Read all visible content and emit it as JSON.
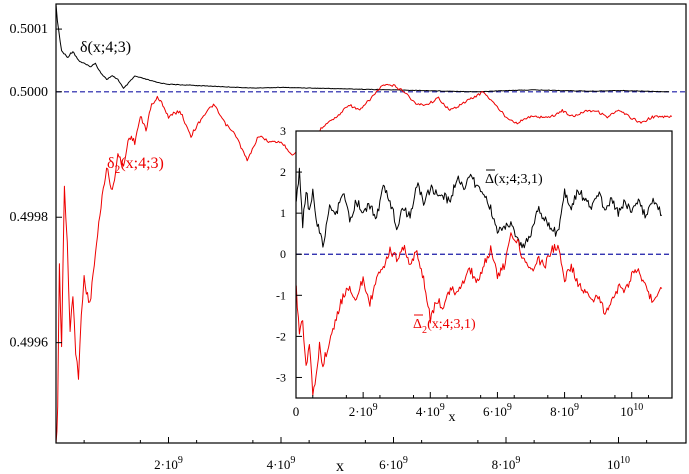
{
  "chart_data": [
    {
      "type": "line",
      "title": "",
      "xlabel": "x",
      "ylabel": "",
      "xlim": [
        0,
        11200000000
      ],
      "ylim": [
        0.49944,
        0.50014
      ],
      "x_ticks": [
        {
          "value": 2000000000,
          "mant": "2",
          "sep": "·",
          "base": "10",
          "exp": "9"
        },
        {
          "value": 4000000000,
          "mant": "4",
          "sep": "·",
          "base": "10",
          "exp": "9"
        },
        {
          "value": 6000000000,
          "mant": "6",
          "sep": "·",
          "base": "10",
          "exp": "9"
        },
        {
          "value": 8000000000,
          "mant": "8",
          "sep": "·",
          "base": "10",
          "exp": "9"
        },
        {
          "value": 10000000000,
          "mant": "",
          "sep": "",
          "base": "10",
          "exp": "10"
        }
      ],
      "y_ticks": [
        {
          "value": 0.4996,
          "label": "0.4996"
        },
        {
          "value": 0.4998,
          "label": "0.4998"
        },
        {
          "value": 0.5,
          "label": "0.5000"
        },
        {
          "value": 0.5001,
          "label": "0.5001"
        }
      ],
      "reference_line": {
        "y": 0.5,
        "color": "#1a1aa6",
        "style": "dashed"
      },
      "series": [
        {
          "label_main": "δ",
          "label_sub": "",
          "label_rest": "(x;4;3)",
          "color": "#000000",
          "x": [
            1000000,
            50000000,
            100000000,
            200000000,
            300000000,
            400000000,
            500000000,
            600000000,
            700000000,
            800000000,
            900000000,
            1000000000,
            1100000000,
            1200000000,
            1400000000,
            1600000000,
            1800000000,
            2000000000,
            2500000000,
            3000000000,
            3500000000,
            4000000000,
            4500000000,
            5000000000,
            5500000000,
            6000000000,
            6500000000,
            7000000000,
            7500000000,
            8000000000,
            8500000000,
            9000000000,
            9500000000,
            10000000000,
            10500000000,
            10900000000
          ],
          "y": [
            0.500135,
            0.500095,
            0.500065,
            0.500055,
            0.500065,
            0.50005,
            0.500045,
            0.50004,
            0.500045,
            0.50003,
            0.50002,
            0.500025,
            0.50002,
            0.500005,
            0.500025,
            0.50002,
            0.500015,
            0.500012,
            0.50001,
            0.500008,
            0.500006,
            0.500007,
            0.500006,
            0.500005,
            0.500004,
            0.500003,
            0.500002,
            0.500001,
            0.5,
            0.500002,
            0.500003,
            0.500002,
            0.500001,
            0.500002,
            0.500001,
            0.5
          ]
        },
        {
          "label_main": "δ",
          "label_sub": "2",
          "label_rest": "(x;4;3)",
          "color": "#ee0000",
          "x": [
            1000000,
            30000000,
            60000000,
            100000000,
            150000000,
            200000000,
            250000000,
            300000000,
            350000000,
            400000000,
            450000000,
            500000000,
            600000000,
            700000000,
            800000000,
            900000000,
            1000000000,
            1100000000,
            1200000000,
            1300000000,
            1400000000,
            1500000000,
            1600000000,
            1700000000,
            1800000000,
            1900000000,
            2000000000,
            2200000000,
            2400000000,
            2600000000,
            2800000000,
            3000000000,
            3200000000,
            3400000000,
            3600000000,
            3800000000,
            4000000000,
            4200000000,
            4400000000,
            4600000000,
            4800000000,
            5000000000,
            5200000000,
            5400000000,
            5600000000,
            5800000000,
            6000000000,
            6200000000,
            6400000000,
            6600000000,
            6800000000,
            7000000000,
            7200000000,
            7400000000,
            7600000000,
            7800000000,
            8000000000,
            8200000000,
            8400000000,
            8600000000,
            8800000000,
            9000000000,
            9200000000,
            9400000000,
            9600000000,
            9800000000,
            10000000000,
            10200000000,
            10400000000,
            10600000000,
            10800000000,
            10950000000
          ],
          "y": [
            0.49943,
            0.4995,
            0.49972,
            0.4996,
            0.49985,
            0.49975,
            0.49962,
            0.49968,
            0.49958,
            0.49955,
            0.49965,
            0.4997,
            0.49966,
            0.49974,
            0.49982,
            0.49988,
            0.49984,
            0.4999,
            0.49988,
            0.49993,
            0.49992,
            0.49996,
            0.49994,
            0.49998,
            0.49999,
            0.49998,
            0.49996,
            0.49997,
            0.49993,
            0.49996,
            0.49998,
            0.49995,
            0.49993,
            0.49989,
            0.49993,
            0.49992,
            0.49992,
            0.4999,
            0.49991,
            0.49993,
            0.49995,
            0.49996,
            0.49998,
            0.49997,
            0.49999,
            0.50001,
            0.50001,
            0.5,
            0.49998,
            0.49998,
            0.49999,
            0.49997,
            0.49998,
            0.49999,
            0.5,
            0.49998,
            0.49996,
            0.49995,
            0.49996,
            0.49996,
            0.49996,
            0.49997,
            0.49996,
            0.49997,
            0.49997,
            0.49996,
            0.49997,
            0.49996,
            0.49995,
            0.49996,
            0.49996,
            0.49996
          ]
        }
      ],
      "label_positions_note": ""
    },
    {
      "type": "line",
      "title": "",
      "xlabel": "x",
      "ylabel": "",
      "xlim": [
        0,
        11200000000
      ],
      "ylim": [
        -3.5,
        3
      ],
      "x_ticks": [
        {
          "value": 0,
          "mant": "0",
          "sep": "",
          "base": "",
          "exp": ""
        },
        {
          "value": 2000000000,
          "mant": "2",
          "sep": "·",
          "base": "10",
          "exp": "9"
        },
        {
          "value": 4000000000,
          "mant": "4",
          "sep": "·",
          "base": "10",
          "exp": "9"
        },
        {
          "value": 6000000000,
          "mant": "6",
          "sep": "·",
          "base": "10",
          "exp": "9"
        },
        {
          "value": 8000000000,
          "mant": "8",
          "sep": "·",
          "base": "10",
          "exp": "9"
        },
        {
          "value": 10000000000,
          "mant": "",
          "sep": "",
          "base": "10",
          "exp": "10"
        }
      ],
      "y_ticks": [
        {
          "value": -3,
          "label": "-3"
        },
        {
          "value": -2,
          "label": "-2"
        },
        {
          "value": -1,
          "label": "-1"
        },
        {
          "value": 0,
          "label": "0"
        },
        {
          "value": 1,
          "label": "1"
        },
        {
          "value": 2,
          "label": "2"
        },
        {
          "value": 3,
          "label": "3"
        }
      ],
      "reference_line": {
        "y": 0,
        "color": "#1a1aa6",
        "style": "dashed"
      },
      "series": [
        {
          "label_main": "Δ",
          "label_sub": "",
          "label_rest": "(x;4;3,1)",
          "color": "#000000",
          "x": [
            10000000,
            100000000,
            200000000,
            300000000,
            400000000,
            500000000,
            600000000,
            800000000,
            1000000000,
            1200000000,
            1400000000,
            1600000000,
            1800000000,
            2000000000,
            2200000000,
            2400000000,
            2600000000,
            2800000000,
            3000000000,
            3200000000,
            3400000000,
            3600000000,
            3800000000,
            4000000000,
            4200000000,
            4400000000,
            4600000000,
            4800000000,
            5000000000,
            5200000000,
            5400000000,
            5600000000,
            5800000000,
            6000000000,
            6200000000,
            6400000000,
            6600000000,
            6800000000,
            7000000000,
            7200000000,
            7400000000,
            7600000000,
            7800000000,
            8000000000,
            8200000000,
            8400000000,
            8600000000,
            8800000000,
            9000000000,
            9200000000,
            9400000000,
            9600000000,
            9800000000,
            10000000000,
            10200000000,
            10400000000,
            10600000000,
            10900000000
          ],
          "y": [
            1.2,
            2.1,
            0.7,
            1.6,
            1.0,
            1.6,
            0.9,
            0.2,
            1.1,
            1.0,
            1.5,
            0.8,
            1.3,
            1.0,
            1.2,
            0.9,
            1.6,
            1.3,
            0.7,
            1.1,
            0.9,
            1.7,
            1.3,
            1.6,
            1.5,
            1.4,
            1.3,
            1.9,
            1.6,
            2.0,
            1.6,
            1.5,
            1.1,
            0.6,
            0.6,
            0.8,
            0.3,
            0.2,
            0.5,
            1.1,
            0.9,
            0.6,
            0.5,
            1.5,
            1.1,
            1.6,
            1.3,
            1.2,
            1.5,
            1.1,
            1.3,
            1.0,
            1.3,
            1.0,
            1.4,
            0.9,
            1.3,
            1.0
          ]
        },
        {
          "label_main": "Δ",
          "label_sub": "2",
          "label_rest": "(x;4;3,1)",
          "color": "#ee0000",
          "x": [
            10000000,
            100000000,
            200000000,
            300000000,
            400000000,
            500000000,
            600000000,
            700000000,
            800000000,
            1000000000,
            1200000000,
            1400000000,
            1600000000,
            1800000000,
            2000000000,
            2200000000,
            2400000000,
            2600000000,
            2800000000,
            3000000000,
            3200000000,
            3400000000,
            3600000000,
            3800000000,
            4000000000,
            4200000000,
            4400000000,
            4600000000,
            4800000000,
            5000000000,
            5200000000,
            5400000000,
            5600000000,
            5800000000,
            6000000000,
            6200000000,
            6400000000,
            6600000000,
            6800000000,
            7000000000,
            7200000000,
            7400000000,
            7600000000,
            7800000000,
            8000000000,
            8200000000,
            8400000000,
            8600000000,
            8800000000,
            9000000000,
            9200000000,
            9400000000,
            9600000000,
            9800000000,
            10000000000,
            10200000000,
            10400000000,
            10600000000,
            10900000000
          ],
          "y": [
            -0.8,
            -2.0,
            -1.6,
            -2.8,
            -2.2,
            -3.4,
            -2.9,
            -2.2,
            -2.7,
            -2.1,
            -1.6,
            -1.0,
            -0.8,
            -1.1,
            -0.6,
            -1.2,
            -0.6,
            -0.4,
            0.1,
            -0.1,
            0.2,
            -0.3,
            0.1,
            -0.6,
            -1.6,
            -1.1,
            -1.3,
            -0.8,
            -1.0,
            -0.6,
            -0.4,
            -0.7,
            -0.2,
            0.1,
            -0.5,
            -0.3,
            0.5,
            0.3,
            -0.2,
            -0.4,
            -0.1,
            -0.3,
            0.1,
            0.2,
            -0.6,
            -0.3,
            -0.7,
            -0.9,
            -1.2,
            -1.0,
            -1.4,
            -1.1,
            -0.8,
            -0.9,
            -0.5,
            -0.3,
            -0.8,
            -1.1,
            -0.8
          ]
        }
      ]
    }
  ]
}
